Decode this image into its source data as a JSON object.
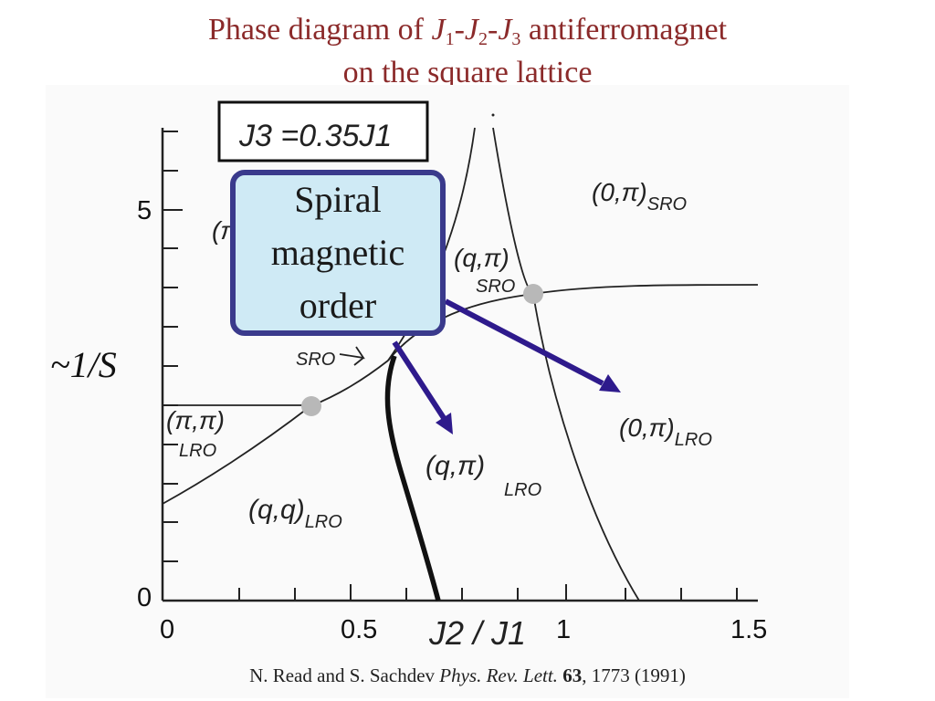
{
  "title": {
    "line1_prefix": "Phase diagram of ",
    "j1": "J",
    "j1_sub": "1",
    "dash1": "-",
    "j2": "J",
    "j2_sub": "2",
    "dash2": "-",
    "j3": "J",
    "j3_sub": "3",
    "line1_suffix": "  antiferromagnet",
    "line2": "on the square lattice"
  },
  "figure": {
    "parameter_box": "J3 =0.35J1",
    "y_ticks": [
      "0",
      "5"
    ],
    "x_ticks": [
      "0",
      "0.5",
      "1",
      "1.5"
    ],
    "x_axis_label": "J2 / J1",
    "y_axis_side_label": "~1/S",
    "phases": {
      "zero_pi_sro": {
        "main": "(0,π)",
        "sub": "SRO"
      },
      "q_pi_sro": {
        "main": "(q,π)",
        "sub": "SRO"
      },
      "pi_partial": {
        "main": "(π",
        "sub": ""
      },
      "sro_small": {
        "main": "",
        "sub": "SRO"
      },
      "pi_pi_lro": {
        "main": "(π,π)",
        "sub": "LRO"
      },
      "zero_pi_lro": {
        "main": "(0,π)",
        "sub": "LRO"
      },
      "q_pi_lro": {
        "main": "(q,π)",
        "sub": "LRO"
      },
      "q_q_lro": {
        "main": "(q,q)",
        "sub": "LRO"
      }
    }
  },
  "callout": {
    "lines": [
      "Spiral",
      "magnetic",
      "order"
    ]
  },
  "citation": {
    "authors": "N. Read and S. Sachdev ",
    "journal": "Phys. Rev. Lett.",
    "volume": "63",
    "rest": ", 1773 (1991)"
  },
  "colors": {
    "title": "#8b2a2a",
    "callout_fill": "#cfeaf5",
    "callout_border": "#3a3a8c",
    "arrow": "#2e1a8c",
    "marker": "#b8b8b8"
  }
}
